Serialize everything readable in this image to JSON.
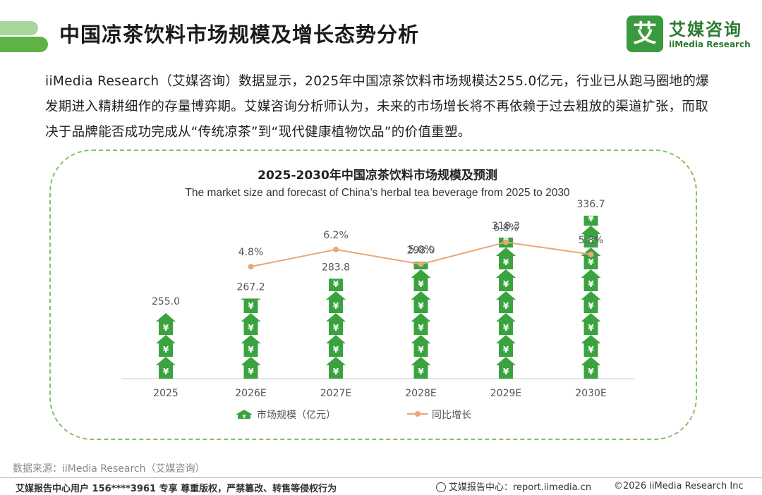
{
  "header": {
    "title": "中国凉茶饮料市场规模及增长态势分析",
    "logo_mark": "艾",
    "logo_cn": "艾媒咨询",
    "logo_en": "iiMedia Research"
  },
  "intro": {
    "paragraph": "iiMedia Research（艾媒咨询）数据显示，2025年中国凉茶饮料市场规模达255.0亿元，行业已从跑马圈地的爆发期进入精耕细作的存量博弈期。艾媒咨询分析师认为，未来的市场增长将不再依赖于过去粗放的渠道扩张，而取决于品牌能否成功完成从“传统凉茶”到“现代健康植物饮品”的价值重塑。"
  },
  "chart_data": {
    "type": "bar",
    "title": "2025-2030年中国凉茶饮料市场规模及预测",
    "subtitle": "The market size and forecast of China’s herbal tea beverage from 2025 to 2030",
    "categories": [
      "2025",
      "2026E",
      "2027E",
      "2028E",
      "2029E",
      "2030E"
    ],
    "series": [
      {
        "name": "市场规模（亿元）",
        "kind": "pictogram",
        "values": [
          255.0,
          267.2,
          283.8,
          298.0,
          318.3,
          336.7
        ],
        "labels": [
          "255.0",
          "267.2",
          "283.8",
          "298.0",
          "318.3",
          "336.7"
        ]
      },
      {
        "name": "同比增长",
        "kind": "line",
        "values": [
          null,
          4.8,
          6.2,
          5.0,
          6.8,
          5.8
        ],
        "labels": [
          "",
          "4.8%",
          "6.2%",
          "5.0%",
          "6.8%",
          "5.8%"
        ]
      }
    ],
    "ylabel": "",
    "xlabel": "",
    "legend_position": "bottom",
    "icon_glyph": "¥",
    "colors": {
      "bar": "#3aa33f",
      "line": "#e8a878",
      "axis": "#cccccc",
      "text": "#555555"
    }
  },
  "colors": {
    "brand_green": "#3a9b3e",
    "frame_border": "#86bf6a"
  },
  "source": "数据来源：iiMedia Research（艾媒咨询）",
  "footer": {
    "left": "艾媒报告中心用户 156****3961 专享 尊重版权，严禁篡改、转售等侵权行为",
    "mid": "艾媒报告中心：report.iimedia.cn",
    "right": "©2026  iiMedia Research  Inc"
  }
}
